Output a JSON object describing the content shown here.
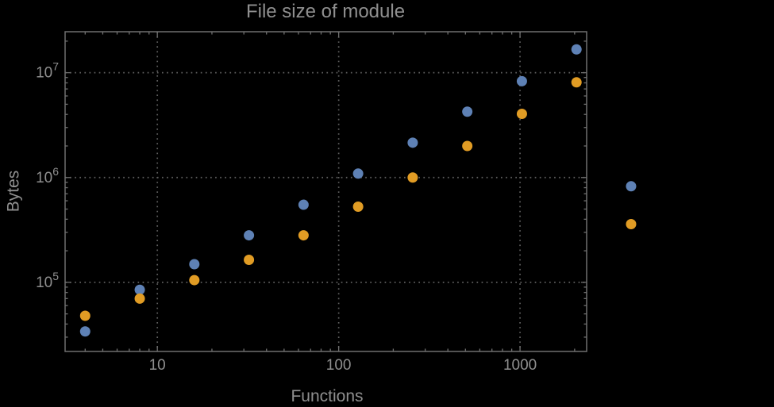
{
  "window": {
    "background": "#000000"
  },
  "colors": {
    "background": "#000000",
    "frame": "#6f6f6f",
    "grid": "#5f5f5f",
    "text": "#8f8f8f",
    "series1": "#5e81b5",
    "series2": "#e19c24"
  },
  "chart_data": {
    "type": "scatter",
    "title": "File size of module",
    "xlabel": "Functions",
    "ylabel": "Bytes",
    "xscale": "log",
    "yscale": "log",
    "xlim": [
      3.1,
      2330
    ],
    "ylim": [
      21900,
      24600000
    ],
    "grid": true,
    "grid_style": "dotted",
    "legend": "none",
    "x_ticks": [
      {
        "value": 10,
        "label": "10"
      },
      {
        "value": 100,
        "label": "100"
      },
      {
        "value": 1000,
        "label": "1000"
      }
    ],
    "y_ticks": [
      {
        "value": 100000,
        "base": "10",
        "exponent": "5"
      },
      {
        "value": 1000000,
        "base": "10",
        "exponent": "6"
      },
      {
        "value": 10000000,
        "base": "10",
        "exponent": "7"
      }
    ],
    "series": [
      {
        "name": "series-1-blue",
        "color": "#5e81b5",
        "marker": "circle",
        "points": [
          [
            4,
            34000
          ],
          [
            8,
            85000
          ],
          [
            16,
            149000
          ],
          [
            32,
            281000
          ],
          [
            64,
            550000
          ],
          [
            128,
            1090000
          ],
          [
            256,
            2150000
          ],
          [
            512,
            4250000
          ],
          [
            1024,
            8300000
          ],
          [
            2048,
            16700000
          ],
          [
            4096,
            825000
          ]
        ]
      },
      {
        "name": "series-2-orange",
        "color": "#e19c24",
        "marker": "circle",
        "points": [
          [
            4,
            48000
          ],
          [
            8,
            70000
          ],
          [
            16,
            105000
          ],
          [
            32,
            164000
          ],
          [
            64,
            281000
          ],
          [
            128,
            527000
          ],
          [
            256,
            1000000
          ],
          [
            512,
            2000000
          ],
          [
            1024,
            4050000
          ],
          [
            2048,
            8100000
          ],
          [
            4096,
            359000
          ]
        ]
      }
    ]
  }
}
